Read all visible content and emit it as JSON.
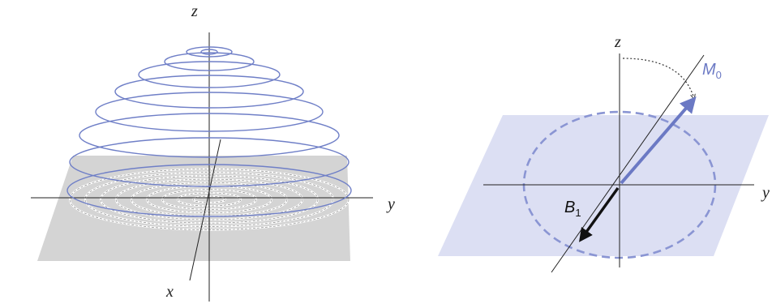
{
  "left_panel": {
    "axis_labels": {
      "z": "z",
      "y": "y",
      "x": "x"
    }
  },
  "right_panel": {
    "axis_labels": {
      "z": "z",
      "y": "y"
    },
    "magnetization": {
      "symbol": "M",
      "subscript": "0"
    },
    "rf_field": {
      "symbol": "B",
      "subscript": "1"
    }
  },
  "colors": {
    "spiral": "#6f7fc7",
    "plane_gray": "#d4d4d4",
    "plane_blue": "#dcdff3",
    "dashed_circle": "#8a95d3",
    "m0_arrow": "#6b79c4",
    "b1_arrow": "#111111",
    "axes": "#222222"
  }
}
